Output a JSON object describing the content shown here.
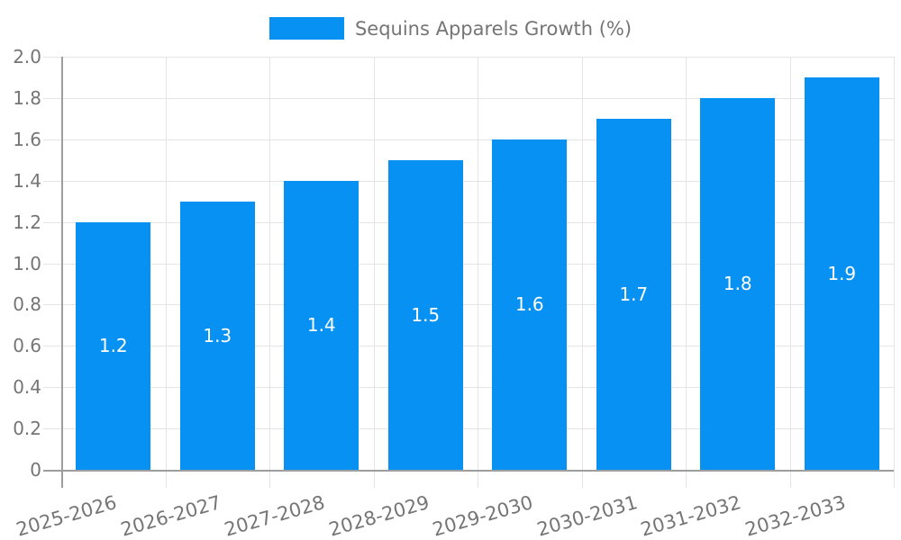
{
  "chart_data": {
    "type": "bar",
    "legend": {
      "label": "Sequins Apparels Growth (%)",
      "position": "top"
    },
    "categories": [
      "2025-2026",
      "2026-2027",
      "2027-2028",
      "2028-2029",
      "2029-2030",
      "2030-2031",
      "2031-2032",
      "2032-2033"
    ],
    "values": [
      1.2,
      1.3,
      1.4,
      1.5,
      1.6,
      1.7,
      1.8,
      1.9
    ],
    "bar_value_labels": [
      "1.2",
      "1.3",
      "1.4",
      "1.5",
      "1.6",
      "1.7",
      "1.8",
      "1.9"
    ],
    "xlabel": "",
    "ylabel": "",
    "ylim": [
      0,
      2.0
    ],
    "y_tick_step": 0.2,
    "y_tick_labels": [
      "0",
      "0.2",
      "0.4",
      "0.6",
      "0.8",
      "1.0",
      "1.2",
      "1.4",
      "1.6",
      "1.8",
      "2.0"
    ],
    "grid": true,
    "colors": {
      "bar": "#0791f2",
      "grid": "#e4e4e4",
      "axis": "#9e9e9e",
      "tick_label": "#757575",
      "value_label": "#ffffff",
      "background": "#ffffff"
    }
  }
}
